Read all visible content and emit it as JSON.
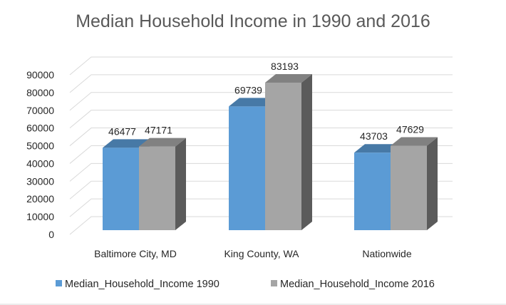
{
  "chart_data": {
    "type": "bar",
    "title": "Median Household Income in 1990 and 2016",
    "xlabel": "",
    "ylabel": "",
    "categories": [
      "Baltimore City, MD",
      "King County, WA",
      "Nationwide"
    ],
    "series": [
      {
        "name": "Median_Household_Income 1990",
        "values": [
          46477,
          69739,
          43703
        ],
        "color": "#5b9bd5"
      },
      {
        "name": "Median_Household_Income 2016",
        "values": [
          47171,
          83193,
          47629
        ],
        "color": "#a5a5a5"
      }
    ],
    "ylim": [
      0,
      90000
    ],
    "yticks": [
      "0",
      "10000",
      "20000",
      "30000",
      "40000",
      "50000",
      "60000",
      "70000",
      "80000",
      "90000"
    ],
    "grid": true,
    "legend_position": "bottom",
    "style": "3d-clustered-column"
  }
}
